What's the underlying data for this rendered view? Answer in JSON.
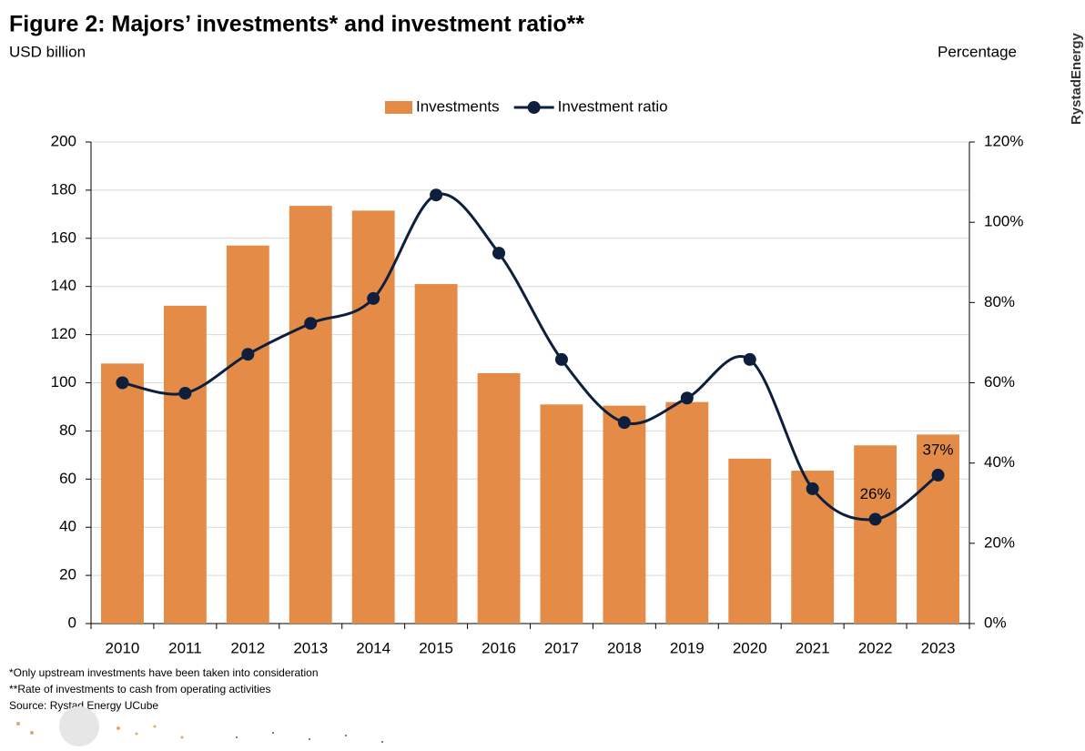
{
  "chart_data": {
    "type": "bar-line",
    "title": "Figure 2: Majors’ investments* and investment ratio**",
    "y_label": "USD billion",
    "y2_label": "Percentage",
    "brand": "RystadEnergy",
    "notes": [
      "*Only upstream investments have been taken into consideration",
      "**Rate of investments to cash from operating activities",
      "Source: Rystad Energy UCube"
    ],
    "categories": [
      "2010",
      "2011",
      "2012",
      "2013",
      "2014",
      "2015",
      "2016",
      "2017",
      "2018",
      "2019",
      "2020",
      "2021",
      "2022",
      "2023"
    ],
    "series": [
      {
        "name": "Investments",
        "type": "bar",
        "color": "#e48c47",
        "values": [
          108,
          132,
          157,
          173.5,
          171.5,
          141,
          104,
          91,
          90.5,
          92,
          68.5,
          63.5,
          74,
          78.5
        ]
      },
      {
        "name": "Investment ratio",
        "type": "line",
        "axis": "y2",
        "color": "#0d1f3c",
        "values": [
          60,
          57.4,
          67.1,
          74.8,
          81,
          106.8,
          92.3,
          65.8,
          50.1,
          56.2,
          65.8,
          33.6,
          26,
          37
        ],
        "value_labels": [
          null,
          null,
          null,
          null,
          null,
          null,
          null,
          null,
          null,
          null,
          null,
          null,
          "26%",
          "37%"
        ]
      }
    ],
    "ylim": [
      0,
      200
    ],
    "yticks": [
      0,
      20,
      40,
      60,
      80,
      100,
      120,
      140,
      160,
      180,
      200
    ],
    "y2lim": [
      0,
      120
    ],
    "y2ticks": [
      {
        "value": 0,
        "label": "0%"
      },
      {
        "value": 20,
        "label": "20%"
      },
      {
        "value": 40,
        "label": "40%"
      },
      {
        "value": 60,
        "label": "60%"
      },
      {
        "value": 80,
        "label": "80%"
      },
      {
        "value": 100,
        "label": "100%"
      },
      {
        "value": 120,
        "label": "120%"
      }
    ],
    "grid": true,
    "legend": "top"
  }
}
